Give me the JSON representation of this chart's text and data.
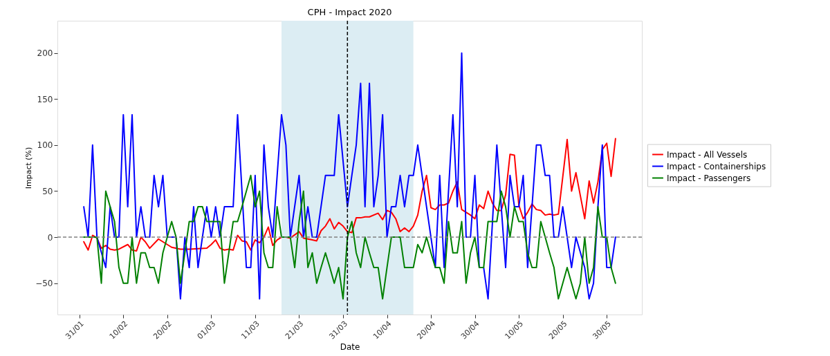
{
  "chart_data": {
    "type": "line",
    "title": "CPH - Impact 2020",
    "xlabel": "Date",
    "ylabel": "Impact (%)",
    "x": [
      "2020-02-01",
      "2020-02-02",
      "2020-02-03",
      "2020-02-04",
      "2020-02-05",
      "2020-02-06",
      "2020-02-07",
      "2020-02-08",
      "2020-02-09",
      "2020-02-10",
      "2020-02-11",
      "2020-02-12",
      "2020-02-13",
      "2020-02-14",
      "2020-02-15",
      "2020-02-16",
      "2020-02-17",
      "2020-02-18",
      "2020-02-19",
      "2020-02-20",
      "2020-02-21",
      "2020-02-22",
      "2020-02-23",
      "2020-02-24",
      "2020-02-25",
      "2020-02-26",
      "2020-02-27",
      "2020-02-28",
      "2020-02-29",
      "2020-03-01",
      "2020-03-02",
      "2020-03-03",
      "2020-03-04",
      "2020-03-05",
      "2020-03-06",
      "2020-03-07",
      "2020-03-08",
      "2020-03-09",
      "2020-03-10",
      "2020-03-11",
      "2020-03-12",
      "2020-03-13",
      "2020-03-14",
      "2020-03-15",
      "2020-03-16",
      "2020-03-17",
      "2020-03-18",
      "2020-03-19",
      "2020-03-20",
      "2020-03-21",
      "2020-03-22",
      "2020-03-23",
      "2020-03-24",
      "2020-03-25",
      "2020-03-26",
      "2020-03-27",
      "2020-03-28",
      "2020-03-29",
      "2020-03-30",
      "2020-03-31",
      "2020-04-01",
      "2020-04-02",
      "2020-04-03",
      "2020-04-04",
      "2020-04-05",
      "2020-04-06",
      "2020-04-07",
      "2020-04-08",
      "2020-04-09",
      "2020-04-10",
      "2020-04-11",
      "2020-04-12",
      "2020-04-13",
      "2020-04-14",
      "2020-04-15",
      "2020-04-16",
      "2020-04-17",
      "2020-04-18",
      "2020-04-19",
      "2020-04-20",
      "2020-04-21",
      "2020-04-22",
      "2020-04-23",
      "2020-04-24",
      "2020-04-25",
      "2020-04-26",
      "2020-04-27",
      "2020-04-28",
      "2020-04-29",
      "2020-04-30",
      "2020-05-01",
      "2020-05-02",
      "2020-05-03",
      "2020-05-04",
      "2020-05-05",
      "2020-05-06",
      "2020-05-07",
      "2020-05-08",
      "2020-05-09",
      "2020-05-10",
      "2020-05-11",
      "2020-05-12",
      "2020-05-13",
      "2020-05-14",
      "2020-05-15",
      "2020-05-16",
      "2020-05-17",
      "2020-05-18",
      "2020-05-19",
      "2020-05-20",
      "2020-05-21",
      "2020-05-22",
      "2020-05-23",
      "2020-05-24",
      "2020-05-25",
      "2020-05-26",
      "2020-05-27",
      "2020-05-28",
      "2020-05-29",
      "2020-05-30",
      "2020-05-31",
      "2020-06-01"
    ],
    "series": [
      {
        "name": "Impact - All Vessels",
        "color": "#ff0000",
        "x": [
          "2020-02-01",
          "2020-02-02",
          "2020-02-03",
          "2020-02-04",
          "2020-02-05",
          "2020-02-06",
          "2020-02-07",
          "2020-02-08",
          "2020-02-09",
          "2020-02-11",
          "2020-02-12",
          "2020-02-13",
          "2020-02-14",
          "2020-02-15",
          "2020-02-16",
          "2020-02-18",
          "2020-02-19",
          "2020-02-20",
          "2020-02-21",
          "2020-02-23",
          "2020-02-25",
          "2020-02-29",
          "2020-03-01",
          "2020-03-02",
          "2020-03-03",
          "2020-03-04",
          "2020-03-05",
          "2020-03-06",
          "2020-03-07",
          "2020-03-08",
          "2020-03-09",
          "2020-03-10",
          "2020-03-11",
          "2020-03-12",
          "2020-03-13",
          "2020-03-14",
          "2020-03-15",
          "2020-03-16",
          "2020-03-17",
          "2020-03-18",
          "2020-03-19",
          "2020-03-21",
          "2020-03-22",
          "2020-03-24",
          "2020-03-25",
          "2020-03-26",
          "2020-03-27",
          "2020-03-28",
          "2020-03-29",
          "2020-03-30",
          "2020-03-31",
          "2020-04-01",
          "2020-04-02",
          "2020-04-03",
          "2020-04-04",
          "2020-04-05",
          "2020-04-06",
          "2020-04-08",
          "2020-04-09",
          "2020-04-10",
          "2020-04-11",
          "2020-04-12",
          "2020-04-13",
          "2020-04-14",
          "2020-04-15",
          "2020-04-16",
          "2020-04-17",
          "2020-04-18",
          "2020-04-19",
          "2020-04-20",
          "2020-04-21",
          "2020-04-22",
          "2020-04-23",
          "2020-04-24",
          "2020-04-25",
          "2020-04-26",
          "2020-04-27",
          "2020-04-28",
          "2020-04-29",
          "2020-04-30",
          "2020-05-01",
          "2020-05-02",
          "2020-05-03",
          "2020-05-04",
          "2020-05-05",
          "2020-05-06",
          "2020-05-07",
          "2020-05-08",
          "2020-05-09",
          "2020-05-10",
          "2020-05-11",
          "2020-05-12",
          "2020-05-13",
          "2020-05-14",
          "2020-05-15",
          "2020-05-16",
          "2020-05-17",
          "2020-05-18",
          "2020-05-19",
          "2020-05-21",
          "2020-05-22",
          "2020-05-23",
          "2020-05-24",
          "2020-05-25",
          "2020-05-26",
          "2020-05-27",
          "2020-05-28",
          "2020-05-29",
          "2020-05-30",
          "2020-05-31",
          "2020-06-01"
        ],
        "values": [
          -5,
          -14,
          2,
          -1,
          -12,
          -9,
          -13,
          -14,
          -13,
          -8,
          -14,
          -15,
          0,
          -5,
          -12,
          -2,
          -5,
          -8,
          -11,
          -13,
          -13,
          -12,
          -8,
          -3,
          -12,
          -14,
          -13,
          -14,
          2,
          -4,
          -5,
          -14,
          -3,
          -6,
          0,
          11,
          -9,
          -3,
          0,
          0,
          -1,
          6,
          -1,
          -3,
          -4,
          7,
          12,
          20,
          9,
          16,
          12,
          6,
          5,
          21,
          21,
          22,
          22,
          26,
          19,
          29,
          27,
          20,
          6,
          10,
          6,
          12,
          24,
          50,
          67,
          32,
          30,
          35,
          35,
          37,
          50,
          60,
          30,
          27,
          24,
          20,
          35,
          31,
          50,
          37,
          29,
          29,
          46,
          90,
          89,
          35,
          20,
          27,
          36,
          30,
          29,
          24,
          25,
          24,
          25,
          106,
          50,
          70,
          45,
          20,
          61,
          37,
          60,
          95,
          102,
          66,
          107
        ]
      },
      {
        "name": "Impact - Containerships",
        "color": "#0000ff",
        "x": [
          "2020-02-01",
          "2020-02-02",
          "2020-02-03",
          "2020-02-04",
          "2020-02-06",
          "2020-02-07",
          "2020-02-08",
          "2020-02-09",
          "2020-02-10",
          "2020-02-11",
          "2020-02-12",
          "2020-02-13",
          "2020-02-14",
          "2020-02-15",
          "2020-02-16",
          "2020-02-17",
          "2020-02-18",
          "2020-02-19",
          "2020-02-20",
          "2020-02-22",
          "2020-02-23",
          "2020-02-24",
          "2020-02-25",
          "2020-02-26",
          "2020-02-27",
          "2020-02-29",
          "2020-03-01",
          "2020-03-02",
          "2020-03-03",
          "2020-03-04",
          "2020-03-06",
          "2020-03-07",
          "2020-03-09",
          "2020-03-10",
          "2020-03-11",
          "2020-03-12",
          "2020-03-13",
          "2020-03-14",
          "2020-03-15",
          "2020-03-17",
          "2020-03-18",
          "2020-03-19",
          "2020-03-21",
          "2020-03-22",
          "2020-03-23",
          "2020-03-24",
          "2020-03-25",
          "2020-03-27",
          "2020-03-29",
          "2020-03-30",
          "2020-04-01",
          "2020-04-02",
          "2020-04-03",
          "2020-04-04",
          "2020-04-05",
          "2020-04-06",
          "2020-04-07",
          "2020-04-08",
          "2020-04-09",
          "2020-04-10",
          "2020-04-11",
          "2020-04-12",
          "2020-04-13",
          "2020-04-14",
          "2020-04-15",
          "2020-04-16",
          "2020-04-17",
          "2020-04-19",
          "2020-04-21",
          "2020-04-22",
          "2020-04-23",
          "2020-04-25",
          "2020-04-26",
          "2020-04-27",
          "2020-04-28",
          "2020-04-29",
          "2020-04-30",
          "2020-05-01",
          "2020-05-02",
          "2020-05-03",
          "2020-05-05",
          "2020-05-06",
          "2020-05-07",
          "2020-05-08",
          "2020-05-09",
          "2020-05-10",
          "2020-05-11",
          "2020-05-12",
          "2020-05-13",
          "2020-05-14",
          "2020-05-15",
          "2020-05-16",
          "2020-05-17",
          "2020-05-18",
          "2020-05-19",
          "2020-05-20",
          "2020-05-21",
          "2020-05-22",
          "2020-05-23",
          "2020-05-25",
          "2020-05-26",
          "2020-05-27",
          "2020-05-28",
          "2020-05-29",
          "2020-05-30",
          "2020-05-31",
          "2020-06-01"
        ],
        "values": [
          33,
          0,
          100,
          0,
          -33,
          33,
          0,
          0,
          133,
          33,
          133,
          0,
          33,
          0,
          0,
          67,
          33,
          67,
          0,
          0,
          -67,
          0,
          -33,
          33,
          -33,
          33,
          0,
          33,
          0,
          33,
          33,
          133,
          -33,
          -33,
          67,
          -67,
          100,
          33,
          0,
          133,
          100,
          0,
          67,
          0,
          33,
          0,
          0,
          67,
          67,
          133,
          33,
          67,
          100,
          167,
          33,
          167,
          33,
          67,
          133,
          0,
          33,
          33,
          67,
          33,
          67,
          67,
          100,
          33,
          -33,
          67,
          -33,
          133,
          33,
          200,
          0,
          0,
          67,
          -33,
          -33,
          -67,
          100,
          33,
          -33,
          67,
          33,
          33,
          67,
          -33,
          33,
          100,
          100,
          67,
          67,
          0,
          0,
          33,
          0,
          -33,
          0,
          -33,
          -67,
          -50,
          33,
          100,
          -33,
          -33,
          0
        ]
      },
      {
        "name": "Impact - Passengers",
        "color": "#008000",
        "values": [
          0,
          0,
          0,
          0,
          -50,
          50,
          33,
          17,
          -33,
          -50,
          -50,
          0,
          -50,
          -17,
          -17,
          -33,
          -33,
          -50,
          -17,
          0,
          17,
          0,
          -50,
          -17,
          17,
          17,
          33,
          33,
          17,
          17,
          17,
          17,
          -50,
          -17,
          17,
          17,
          33,
          50,
          67,
          33,
          50,
          -17,
          -33,
          -33,
          33,
          0,
          0,
          0,
          -33,
          17,
          50,
          -33,
          -17,
          -50,
          -33,
          -17,
          -33,
          -50,
          -33,
          -67,
          0,
          17,
          -17,
          -33,
          0,
          -17,
          -33,
          -33,
          -67,
          -33,
          0,
          0,
          0,
          -33,
          -33,
          -33,
          -8,
          -17,
          0,
          -17,
          -33,
          -33,
          -50,
          17,
          -17,
          -17,
          17,
          -50,
          -17,
          0,
          -33,
          -33,
          17,
          17,
          17,
          50,
          33,
          0,
          33,
          17,
          17,
          -17,
          -33,
          -33,
          17,
          0,
          -17,
          -33,
          -67,
          -50,
          -33,
          -50,
          -67,
          -50,
          0,
          -50,
          -33,
          33,
          0,
          0,
          -33,
          -50
        ]
      }
    ],
    "xlim": [
      "2020-01-26",
      "2020-06-07"
    ],
    "xticks": [
      {
        "value": "2020-01-31",
        "label": "31/01"
      },
      {
        "value": "2020-02-10",
        "label": "10/02"
      },
      {
        "value": "2020-02-20",
        "label": "20/02"
      },
      {
        "value": "2020-03-01",
        "label": "01/03"
      },
      {
        "value": "2020-03-11",
        "label": "11/03"
      },
      {
        "value": "2020-03-21",
        "label": "21/03"
      },
      {
        "value": "2020-03-31",
        "label": "31/03"
      },
      {
        "value": "2020-04-10",
        "label": "10/04"
      },
      {
        "value": "2020-04-20",
        "label": "20/04"
      },
      {
        "value": "2020-04-30",
        "label": "30/04"
      },
      {
        "value": "2020-05-10",
        "label": "10/05"
      },
      {
        "value": "2020-05-20",
        "label": "20/05"
      },
      {
        "value": "2020-05-30",
        "label": "30/05"
      }
    ],
    "ylim": [
      -84,
      235
    ],
    "yticks": [
      -50,
      0,
      50,
      100,
      150,
      200
    ],
    "bands": [
      {
        "axis": "x",
        "from": "2020-03-17",
        "to": "2020-04-16",
        "color": "#dcedf3"
      }
    ],
    "ref_lines": [
      {
        "axis": "y",
        "value": 0,
        "color": "#808080",
        "line_style": "dashed"
      },
      {
        "axis": "x",
        "value": "2020-04-01",
        "color": "#000000",
        "line_style": "dashed"
      }
    ],
    "legend": "right",
    "grid": false
  }
}
